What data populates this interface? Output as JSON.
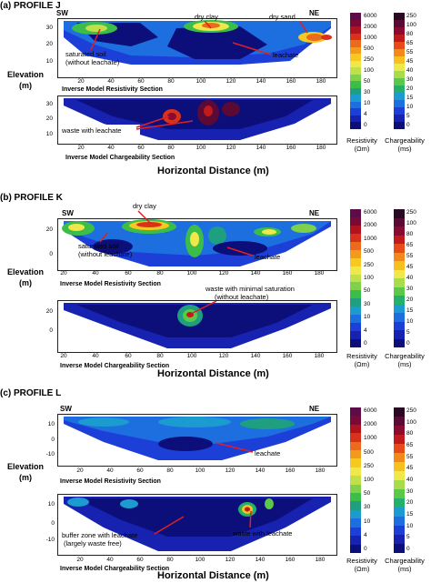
{
  "profiles": [
    {
      "title": "(a) PROFILE J",
      "sw": "SW",
      "ne": "NE",
      "elevation_label": [
        "Elevation",
        "(m)"
      ],
      "res_section": "Inverse Model Resistivity Section",
      "chg_section": "Inverse Model Chargeability Section",
      "horizontal": "Horizontal Distance  (m)",
      "res_yticks": [
        "30",
        "20",
        "10"
      ],
      "chg_yticks": [
        "30",
        "20",
        "10"
      ],
      "xticks": [
        "20",
        "40",
        "60",
        "80",
        "100",
        "120",
        "140",
        "160",
        "180"
      ],
      "res_annotations": [
        "dry clay",
        "dry sand",
        "saturated soil",
        "(without leachate)",
        "leachate"
      ],
      "chg_annotations": [
        "waste with leachate"
      ]
    },
    {
      "title": "(b) PROFILE K",
      "sw": "SW",
      "ne": "NE",
      "elevation_label": [
        "Elevation",
        "(m)"
      ],
      "res_section": "Inverse Model Resistivity Section",
      "chg_section": "Inverse Model Chargeability Section",
      "horizontal": "Horizontal Distance  (m)",
      "res_yticks": [
        "20",
        "0"
      ],
      "chg_yticks": [
        "20",
        "0"
      ],
      "xticks": [
        "20",
        "40",
        "60",
        "80",
        "100",
        "120",
        "140",
        "160",
        "180"
      ],
      "res_annotations": [
        "dry clay",
        "saturated soil",
        "(without leachate)",
        "leachate"
      ],
      "chg_annotations": [
        "waste with minimal saturation",
        "(without leachate)"
      ]
    },
    {
      "title": "(c) PROFILE L",
      "sw": "SW",
      "ne": "NE",
      "elevation_label": [
        "Elevation",
        "(m)"
      ],
      "res_section": "Inverse Model Resistivity Section",
      "chg_section": "Inverse Model Chargeability Section",
      "horizontal": "Horizontal Distance  (m)",
      "res_yticks": [
        "10",
        "0",
        "-10"
      ],
      "chg_yticks": [
        "10",
        "0",
        "-10"
      ],
      "xticks": [
        "20",
        "40",
        "60",
        "80",
        "100",
        "120",
        "140",
        "160",
        "180"
      ],
      "res_annotations": [
        "leachate"
      ],
      "chg_annotations": [
        "buffer zone with leachate",
        "(largely waste free)",
        "waste with leachate"
      ]
    }
  ],
  "colorbars": {
    "resistivity": {
      "labels": [
        "6000",
        "2000",
        "1000",
        "500",
        "250",
        "100",
        "50",
        "30",
        "10",
        "4",
        "0"
      ],
      "title": [
        "Resistivity",
        "(Ωm)"
      ],
      "colors": [
        "#5e0b4a",
        "#7a0a35",
        "#b0121e",
        "#d8321c",
        "#ea6a1e",
        "#f39a1c",
        "#f7c81f",
        "#efe84a",
        "#bfe04a",
        "#7fd04a",
        "#3cbd4a",
        "#1ea080",
        "#1c9bd0",
        "#1d6fe0",
        "#1c3fd8",
        "#1822b0",
        "#0c0f7a"
      ]
    },
    "chargeability": {
      "labels": [
        "250",
        "100",
        "80",
        "65",
        "55",
        "45",
        "40",
        "30",
        "20",
        "15",
        "10",
        "5",
        "0"
      ],
      "title": [
        "Chargeability",
        "(ms)"
      ],
      "colors": [
        "#2a0a22",
        "#5a0a35",
        "#8a0a30",
        "#c01a1c",
        "#e84a1c",
        "#f3881c",
        "#f7c01f",
        "#efe84a",
        "#a8dc4a",
        "#5cc84a",
        "#22b06a",
        "#1c9bd0",
        "#1d6fe0",
        "#1c3fd8",
        "#1822b0",
        "#0c0f7a"
      ]
    }
  }
}
